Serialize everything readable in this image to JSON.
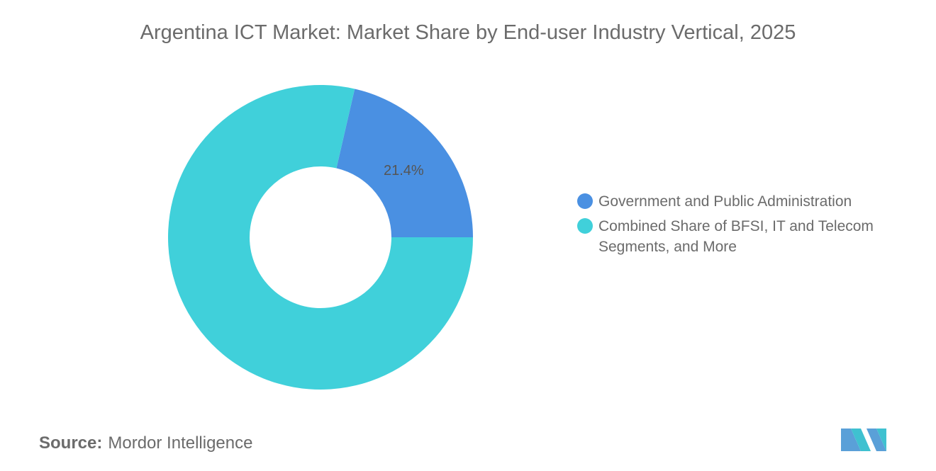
{
  "chart_data": {
    "type": "pie",
    "title": "Argentina ICT Market: Market Share by End-user Industry Vertical, 2025",
    "categories": [
      "Government and Public Administration",
      "Combined Share of BFSI, IT and Telecom Segments, and More"
    ],
    "values": [
      21.4,
      78.6
    ],
    "value_labels": [
      "21.4%",
      null
    ],
    "colors": [
      "#4a90e2",
      "#40d0da"
    ],
    "legend": "right"
  },
  "source": {
    "label": "Source:",
    "text": "Mordor Intelligence"
  }
}
